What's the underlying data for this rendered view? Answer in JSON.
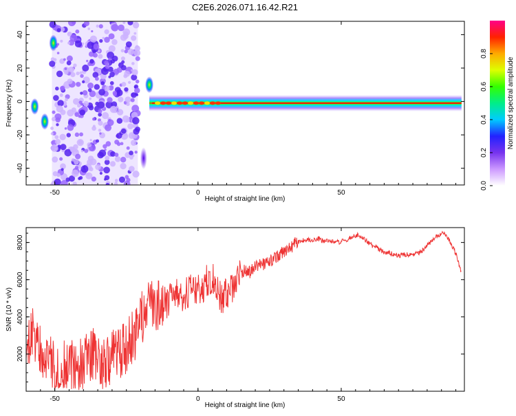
{
  "title": "C2E6.2026.071.16.42.R21",
  "chart_data": [
    {
      "type": "heatmap",
      "xlabel": "Height of straight line (km)",
      "ylabel": "Frequency (Hz)",
      "xlim": [
        -60,
        93
      ],
      "ylim": [
        -50,
        48
      ],
      "xticks": [
        -50,
        0,
        50
      ],
      "yticks": [
        -40,
        -20,
        0,
        20,
        40
      ],
      "colorbar": {
        "label": "Normalized spectral amplitude",
        "range": [
          0,
          1
        ],
        "ticks": [
          0.0,
          0.2,
          0.4,
          0.6,
          0.8
        ],
        "tick_labels": [
          "0.0",
          "0.2",
          "0.4",
          "0.6",
          "0.8"
        ],
        "colors": [
          "#ffffff",
          "#cc99ff",
          "#7733ee",
          "#2222ff",
          "#00ccff",
          "#00ee88",
          "#33ff00",
          "#ddff00",
          "#ffaa00",
          "#ff2200",
          "#ff0088"
        ]
      },
      "features": [
        {
          "name": "noise",
          "x": [
            -51,
            -21
          ],
          "y": [
            -50,
            48
          ],
          "level": 0.2
        },
        {
          "name": "band",
          "x": [
            -17,
            92
          ],
          "y": [
            -2,
            0
          ],
          "level": 0.75
        },
        {
          "name": "blob",
          "x": -50.5,
          "y": 35,
          "level": 0.45
        },
        {
          "name": "blob",
          "x": -17,
          "y": 10,
          "level": 0.45
        },
        {
          "name": "blob",
          "x": -19,
          "y": -34,
          "level": 0.3
        },
        {
          "name": "blob",
          "x": -53.5,
          "y": -12,
          "level": 0.45
        },
        {
          "name": "blob",
          "x": -57,
          "y": -3,
          "level": 0.5
        }
      ]
    },
    {
      "type": "line",
      "xlabel": "Height of straight line (km)",
      "ylabel": "SNR (10 * v/v)",
      "xlim": [
        -60,
        93
      ],
      "ylim": [
        0,
        8800
      ],
      "xticks": [
        -50,
        0,
        50
      ],
      "yticks": [
        2000,
        4000,
        6000,
        8000
      ],
      "series": [
        {
          "color": "#ee3333",
          "x": [
            -60,
            -58,
            -56,
            -54,
            -52,
            -50,
            -48,
            -46,
            -44,
            -42,
            -40,
            -38,
            -36,
            -34,
            -32,
            -30,
            -28,
            -26,
            -24,
            -22,
            -20,
            -18,
            -16,
            -14,
            -12,
            -10,
            -8,
            -6,
            -4,
            -2,
            0,
            2,
            4,
            6,
            8,
            10,
            12,
            14,
            16,
            18,
            20,
            22,
            24,
            26,
            28,
            30,
            32,
            34,
            36,
            38,
            40,
            42,
            44,
            46,
            48,
            50,
            52,
            54,
            56,
            58,
            60,
            62,
            64,
            66,
            68,
            70,
            72,
            74,
            76,
            78,
            80,
            82,
            84,
            86,
            88,
            90,
            92
          ],
          "y": [
            2500,
            3200,
            2800,
            1800,
            1600,
            1200,
            1500,
            1100,
            1300,
            1400,
            1500,
            1800,
            2000,
            1500,
            1700,
            1800,
            2000,
            2300,
            2600,
            3000,
            3800,
            4400,
            4600,
            4500,
            4700,
            4900,
            5200,
            5000,
            5300,
            5500,
            5400,
            5700,
            6100,
            5900,
            5000,
            5200,
            5400,
            6000,
            6500,
            6400,
            6700,
            6800,
            6900,
            7100,
            7300,
            7500,
            7700,
            7950,
            8100,
            8150,
            8100,
            8200,
            8050,
            8100,
            8000,
            8050,
            8150,
            8300,
            8400,
            8200,
            7900,
            7750,
            7550,
            7450,
            7400,
            7300,
            7350,
            7350,
            7400,
            7500,
            7850,
            8150,
            8400,
            8550,
            8050,
            7400,
            6300
          ]
        }
      ]
    }
  ]
}
